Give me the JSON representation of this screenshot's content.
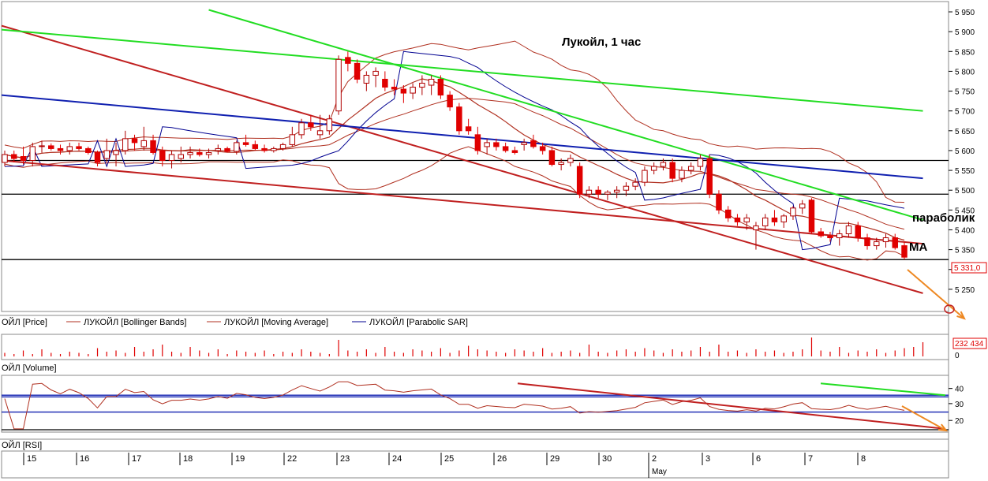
{
  "title": "Лукойл,  1 час",
  "annotations": {
    "parabolic": "параболик",
    "ma": "MA"
  },
  "price_panel": {
    "legend": [
      "ОЙЛ [Price]",
      "ЛУКОЙЛ [Bollinger Bands]",
      "ЛУКОЙЛ [Moving Average]",
      "ЛУКОЙЛ [Parabolic SAR]"
    ],
    "last_price": "5 331,0",
    "yticks": [
      "5 950",
      "5 900",
      "5 850",
      "5 800",
      "5 750",
      "5 700",
      "5 650",
      "5 600",
      "5 550",
      "5 500",
      "5 450",
      "5 400",
      "5 350",
      "5 300",
      "5 250"
    ]
  },
  "volume_panel": {
    "legend": "ОЙЛ [Volume]",
    "last_value": "232 434",
    "zero_label": "0"
  },
  "rsi_panel": {
    "legend": "ОЙЛ [RSI]",
    "yticks": [
      "40",
      "30",
      "20"
    ]
  },
  "x_axis": {
    "days": [
      "15",
      "16",
      "17",
      "18",
      "19",
      "22",
      "23",
      "24",
      "25",
      "26",
      "29",
      "30",
      "2",
      "3",
      "6",
      "7",
      "8"
    ],
    "month_label": "May"
  },
  "colors": {
    "bull": "#ffffff",
    "bear": "#e00000",
    "bollinger": "#b03020",
    "sar": "#000090",
    "trend_red": "#c02020",
    "trend_green": "#22dd22",
    "trend_blue": "#1020b0",
    "forecast": "#ee8822"
  },
  "chart_data": {
    "type": "candlestick",
    "price": {
      "ylim": [
        5200,
        5960
      ],
      "candles": [
        [
          5570,
          5600,
          5560,
          5590
        ],
        [
          5590,
          5600,
          5570,
          5580
        ],
        [
          5585,
          5610,
          5565,
          5575
        ],
        [
          5575,
          5620,
          5560,
          5610
        ],
        [
          5610,
          5625,
          5595,
          5612
        ],
        [
          5612,
          5618,
          5600,
          5605
        ],
        [
          5605,
          5615,
          5590,
          5600
        ],
        [
          5600,
          5620,
          5590,
          5610
        ],
        [
          5610,
          5620,
          5600,
          5605
        ],
        [
          5605,
          5610,
          5590,
          5595
        ],
        [
          5595,
          5600,
          5560,
          5570
        ],
        [
          5580,
          5630,
          5570,
          5600
        ],
        [
          5590,
          5620,
          5560,
          5600
        ],
        [
          5600,
          5650,
          5590,
          5630
        ],
        [
          5630,
          5640,
          5600,
          5620
        ],
        [
          5610,
          5660,
          5600,
          5625
        ],
        [
          5625,
          5640,
          5590,
          5595
        ],
        [
          5600,
          5610,
          5560,
          5575
        ],
        [
          5575,
          5600,
          5555,
          5590
        ],
        [
          5580,
          5610,
          5570,
          5590
        ],
        [
          5590,
          5610,
          5580,
          5595
        ],
        [
          5595,
          5605,
          5585,
          5590
        ],
        [
          5590,
          5605,
          5580,
          5595
        ],
        [
          5600,
          5615,
          5590,
          5605
        ],
        [
          5605,
          5610,
          5595,
          5598
        ],
        [
          5598,
          5625,
          5590,
          5620
        ],
        [
          5620,
          5640,
          5610,
          5615
        ],
        [
          5615,
          5625,
          5600,
          5605
        ],
        [
          5605,
          5615,
          5595,
          5600
        ],
        [
          5600,
          5610,
          5595,
          5605
        ],
        [
          5605,
          5620,
          5600,
          5615
        ],
        [
          5615,
          5660,
          5610,
          5640
        ],
        [
          5640,
          5680,
          5630,
          5670
        ],
        [
          5670,
          5690,
          5650,
          5660
        ],
        [
          5640,
          5690,
          5630,
          5650
        ],
        [
          5650,
          5690,
          5640,
          5680
        ],
        [
          5700,
          5840,
          5690,
          5830
        ],
        [
          5835,
          5850,
          5800,
          5820
        ],
        [
          5820,
          5830,
          5770,
          5780
        ],
        [
          5770,
          5800,
          5750,
          5790
        ],
        [
          5790,
          5810,
          5760,
          5800
        ],
        [
          5780,
          5800,
          5750,
          5760
        ],
        [
          5760,
          5780,
          5740,
          5755
        ],
        [
          5755,
          5765,
          5720,
          5745
        ],
        [
          5745,
          5770,
          5730,
          5760
        ],
        [
          5760,
          5790,
          5740,
          5770
        ],
        [
          5765,
          5790,
          5740,
          5780
        ],
        [
          5780,
          5790,
          5730,
          5740
        ],
        [
          5740,
          5750,
          5700,
          5710
        ],
        [
          5710,
          5720,
          5640,
          5650
        ],
        [
          5660,
          5680,
          5640,
          5650
        ],
        [
          5640,
          5660,
          5590,
          5600
        ],
        [
          5610,
          5630,
          5590,
          5620
        ],
        [
          5620,
          5630,
          5600,
          5610
        ],
        [
          5610,
          5620,
          5595,
          5600
        ],
        [
          5600,
          5610,
          5590,
          5595
        ],
        [
          5615,
          5630,
          5600,
          5620
        ],
        [
          5625,
          5640,
          5605,
          5610
        ],
        [
          5610,
          5620,
          5590,
          5600
        ],
        [
          5600,
          5610,
          5560,
          5565
        ],
        [
          5565,
          5580,
          5550,
          5570
        ],
        [
          5570,
          5590,
          5560,
          5580
        ],
        [
          5560,
          5570,
          5480,
          5490
        ],
        [
          5490,
          5510,
          5480,
          5500
        ],
        [
          5500,
          5510,
          5480,
          5490
        ],
        [
          5490,
          5500,
          5475,
          5495
        ],
        [
          5495,
          5510,
          5480,
          5500
        ],
        [
          5500,
          5520,
          5485,
          5510
        ],
        [
          5510,
          5530,
          5500,
          5520
        ],
        [
          5520,
          5560,
          5510,
          5550
        ],
        [
          5550,
          5570,
          5540,
          5560
        ],
        [
          5560,
          5580,
          5550,
          5570
        ],
        [
          5570,
          5580,
          5520,
          5530
        ],
        [
          5530,
          5560,
          5520,
          5550
        ],
        [
          5550,
          5570,
          5540,
          5560
        ],
        [
          5560,
          5590,
          5550,
          5580
        ],
        [
          5580,
          5590,
          5480,
          5490
        ],
        [
          5490,
          5500,
          5440,
          5450
        ],
        [
          5450,
          5460,
          5420,
          5430
        ],
        [
          5430,
          5440,
          5410,
          5420
        ],
        [
          5420,
          5440,
          5400,
          5430
        ],
        [
          5400,
          5420,
          5350,
          5410
        ],
        [
          5410,
          5440,
          5400,
          5430
        ],
        [
          5430,
          5450,
          5410,
          5420
        ],
        [
          5420,
          5440,
          5405,
          5435
        ],
        [
          5435,
          5460,
          5425,
          5455
        ],
        [
          5455,
          5475,
          5440,
          5465
        ],
        [
          5475,
          5480,
          5390,
          5395
        ],
        [
          5395,
          5405,
          5380,
          5385
        ],
        [
          5385,
          5395,
          5370,
          5380
        ],
        [
          5380,
          5400,
          5360,
          5390
        ],
        [
          5390,
          5420,
          5380,
          5410
        ],
        [
          5410,
          5420,
          5370,
          5380
        ],
        [
          5380,
          5390,
          5350,
          5360
        ],
        [
          5360,
          5380,
          5350,
          5370
        ],
        [
          5370,
          5390,
          5355,
          5380
        ],
        [
          5380,
          5390,
          5350,
          5355
        ],
        [
          5360,
          5370,
          5325,
          5331
        ]
      ],
      "trendlines": [
        {
          "color": "trend_red",
          "from": [
            0,
            5915
          ],
          "to": [
            99,
            5240
          ]
        },
        {
          "color": "trend_red",
          "from": [
            0,
            5575
          ],
          "to": [
            99,
            5365
          ]
        },
        {
          "color": "trend_green",
          "from": [
            0,
            5905
          ],
          "to": [
            99,
            5700
          ]
        },
        {
          "color": "trend_green",
          "from": [
            22,
            5955
          ],
          "to": [
            99,
            5425
          ]
        },
        {
          "color": "trend_blue",
          "from": [
            0,
            5740
          ],
          "to": [
            99,
            5530
          ]
        }
      ],
      "horizontal_levels": [
        5575,
        5490,
        5325
      ]
    },
    "volume": [
      3,
      2,
      5,
      2,
      6,
      3,
      2,
      4,
      3,
      2,
      7,
      4,
      5,
      3,
      8,
      4,
      6,
      10,
      4,
      3,
      8,
      5,
      3,
      6,
      2,
      5,
      4,
      3,
      5,
      2,
      4,
      3,
      6,
      4,
      3,
      2,
      14,
      5,
      4,
      6,
      3,
      8,
      4,
      3,
      6,
      5,
      4,
      7,
      3,
      5,
      9,
      6,
      5,
      4,
      3,
      6,
      5,
      4,
      7,
      3,
      4,
      5,
      3,
      10,
      4,
      3,
      5,
      6,
      4,
      7,
      5,
      3,
      6,
      4,
      5,
      8,
      4,
      10,
      4,
      5,
      3,
      6,
      4,
      5,
      3,
      4,
      6,
      16,
      5,
      4,
      8,
      3,
      5,
      4,
      6,
      3,
      5,
      7,
      8,
      12
    ]
  }
}
